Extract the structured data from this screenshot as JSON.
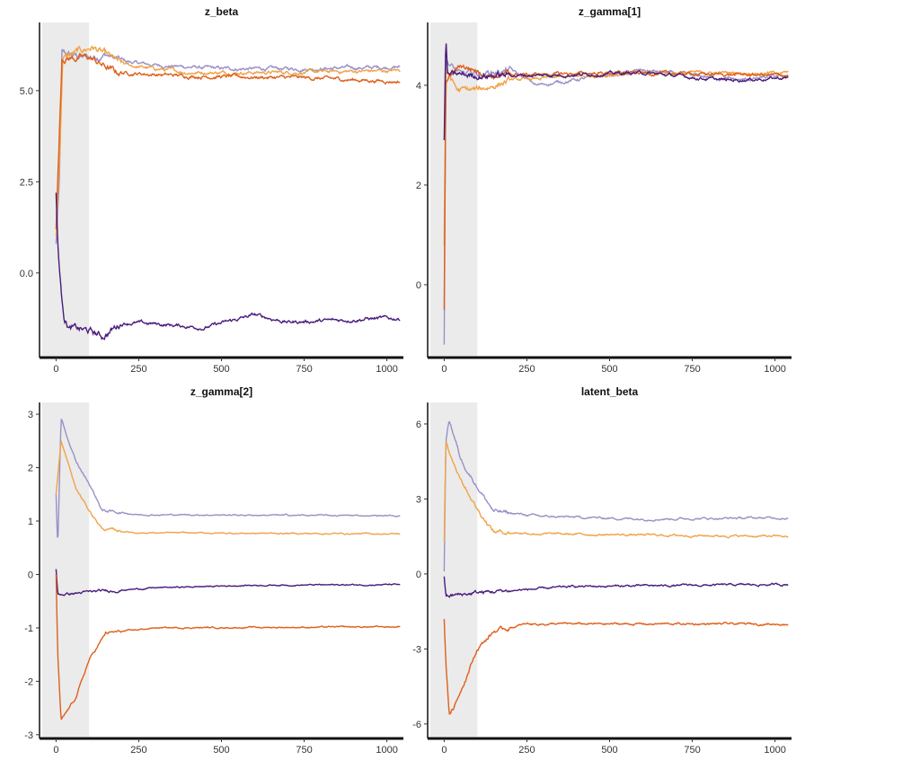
{
  "colors": {
    "dark_purple": "#4a1d7c",
    "light_purple": "#9a90c6",
    "light_orange": "#f0a349",
    "dark_orange": "#df5f1b",
    "warmup": "#ebebeb"
  },
  "chart_data": [
    {
      "type": "line",
      "title": "z_beta",
      "xlim": [
        -50,
        1050
      ],
      "ylim": [
        -2.32,
        6.87
      ],
      "xticks": [
        "0",
        "250",
        "500",
        "750",
        "1000"
      ],
      "yticks": [
        "0.0",
        "2.5",
        "5.0"
      ],
      "warmup": [
        0,
        100
      ],
      "grid": false,
      "noise": 0.06,
      "series": [
        {
          "color": "light_purple",
          "points": [
            [
              0,
              0.8
            ],
            [
              10,
              2.5
            ],
            [
              18,
              6.0
            ],
            [
              100,
              5.9
            ],
            [
              150,
              6.0
            ],
            [
              200,
              5.8
            ],
            [
              300,
              5.7
            ],
            [
              500,
              5.6
            ],
            [
              750,
              5.6
            ],
            [
              1040,
              5.65
            ]
          ]
        },
        {
          "color": "light_orange",
          "points": [
            [
              0,
              1.0
            ],
            [
              12,
              3.5
            ],
            [
              20,
              5.9
            ],
            [
              110,
              6.2
            ],
            [
              200,
              5.7
            ],
            [
              400,
              5.5
            ],
            [
              700,
              5.5
            ],
            [
              1040,
              5.55
            ]
          ]
        },
        {
          "color": "dark_orange",
          "points": [
            [
              0,
              1.2
            ],
            [
              18,
              5.9
            ],
            [
              100,
              5.9
            ],
            [
              180,
              5.5
            ],
            [
              400,
              5.4
            ],
            [
              750,
              5.35
            ],
            [
              1040,
              5.25
            ]
          ]
        },
        {
          "color": "dark_purple",
          "points": [
            [
              0,
              2.2
            ],
            [
              5,
              0.8
            ],
            [
              15,
              -0.5
            ],
            [
              25,
              -1.2
            ],
            [
              40,
              -1.5
            ],
            [
              100,
              -1.6
            ],
            [
              140,
              -1.75
            ],
            [
              200,
              -1.35
            ],
            [
              300,
              -1.4
            ],
            [
              450,
              -1.5
            ],
            [
              600,
              -1.15
            ],
            [
              700,
              -1.35
            ],
            [
              850,
              -1.3
            ],
            [
              950,
              -1.25
            ],
            [
              1040,
              -1.25
            ]
          ]
        }
      ]
    },
    {
      "type": "line",
      "title": "z_gamma[1]",
      "xlim": [
        -50,
        1050
      ],
      "ylim": [
        -1.46,
        5.26
      ],
      "xticks": [
        "0",
        "250",
        "500",
        "750",
        "1000"
      ],
      "yticks": [
        "0",
        "2",
        "4"
      ],
      "warmup": [
        0,
        100
      ],
      "grid": false,
      "noise": 0.04,
      "series": [
        {
          "color": "light_purple",
          "points": [
            [
              0,
              -1.2
            ],
            [
              5,
              4.5
            ],
            [
              50,
              4.2
            ],
            [
              200,
              4.3
            ],
            [
              280,
              4.0
            ],
            [
              600,
              4.3
            ],
            [
              900,
              4.1
            ],
            [
              1040,
              4.2
            ]
          ]
        },
        {
          "color": "light_orange",
          "points": [
            [
              0,
              0.8
            ],
            [
              5,
              4.3
            ],
            [
              40,
              3.9
            ],
            [
              100,
              3.9
            ],
            [
              200,
              4.1
            ],
            [
              600,
              4.25
            ],
            [
              1040,
              4.25
            ]
          ]
        },
        {
          "color": "dark_orange",
          "points": [
            [
              0,
              -0.5
            ],
            [
              5,
              4.1
            ],
            [
              50,
              4.4
            ],
            [
              150,
              4.2
            ],
            [
              500,
              4.25
            ],
            [
              1040,
              4.2
            ]
          ]
        },
        {
          "color": "dark_purple",
          "points": [
            [
              0,
              2.9
            ],
            [
              5,
              5.0
            ],
            [
              10,
              4.2
            ],
            [
              100,
              4.2
            ],
            [
              300,
              4.2
            ],
            [
              600,
              4.25
            ],
            [
              850,
              4.1
            ],
            [
              1040,
              4.15
            ]
          ]
        }
      ]
    },
    {
      "type": "line",
      "title": "z_gamma[2]",
      "xlim": [
        -50,
        1050
      ],
      "ylim": [
        -3.07,
        3.22
      ],
      "xticks": [
        "0",
        "250",
        "500",
        "750",
        "1000"
      ],
      "yticks": [
        "-3",
        "-2",
        "-1",
        "0",
        "1",
        "2",
        "3"
      ],
      "warmup": [
        0,
        100
      ],
      "grid": false,
      "noise": 0.015,
      "series": [
        {
          "color": "light_purple",
          "points": [
            [
              0,
              1.5
            ],
            [
              5,
              0.5
            ],
            [
              15,
              2.9
            ],
            [
              60,
              2.1
            ],
            [
              100,
              1.7
            ],
            [
              140,
              1.2
            ],
            [
              250,
              1.12
            ],
            [
              1040,
              1.1
            ]
          ]
        },
        {
          "color": "light_orange",
          "points": [
            [
              0,
              1.5
            ],
            [
              15,
              2.5
            ],
            [
              60,
              1.6
            ],
            [
              100,
              1.2
            ],
            [
              140,
              0.85
            ],
            [
              250,
              0.78
            ],
            [
              1040,
              0.76
            ]
          ]
        },
        {
          "color": "dark_purple",
          "points": [
            [
              0,
              0.1
            ],
            [
              5,
              -0.38
            ],
            [
              100,
              -0.33
            ],
            [
              300,
              -0.25
            ],
            [
              600,
              -0.2
            ],
            [
              1040,
              -0.19
            ]
          ]
        },
        {
          "color": "dark_orange",
          "points": [
            [
              0,
              0.0
            ],
            [
              5,
              -1.5
            ],
            [
              15,
              -2.75
            ],
            [
              60,
              -2.3
            ],
            [
              100,
              -1.6
            ],
            [
              150,
              -1.1
            ],
            [
              300,
              -1.0
            ],
            [
              1040,
              -0.98
            ]
          ]
        }
      ]
    },
    {
      "type": "line",
      "title": "latent_beta",
      "xlim": [
        -50,
        1050
      ],
      "ylim": [
        -6.58,
        6.86
      ],
      "xticks": [
        "0",
        "250",
        "500",
        "750",
        "1000"
      ],
      "yticks": [
        "-6",
        "-3",
        "0",
        "3",
        "6"
      ],
      "warmup": [
        0,
        100
      ],
      "grid": false,
      "noise": 0.05,
      "series": [
        {
          "color": "light_purple",
          "points": [
            [
              0,
              0.1
            ],
            [
              5,
              5.3
            ],
            [
              15,
              6.2
            ],
            [
              50,
              4.6
            ],
            [
              100,
              3.5
            ],
            [
              150,
              2.5
            ],
            [
              300,
              2.3
            ],
            [
              600,
              2.2
            ],
            [
              1040,
              2.25
            ]
          ]
        },
        {
          "color": "light_orange",
          "points": [
            [
              0,
              1.3
            ],
            [
              5,
              5.3
            ],
            [
              15,
              4.8
            ],
            [
              60,
              3.6
            ],
            [
              100,
              2.6
            ],
            [
              150,
              1.7
            ],
            [
              300,
              1.6
            ],
            [
              1040,
              1.5
            ]
          ]
        },
        {
          "color": "dark_purple",
          "points": [
            [
              0,
              -0.1
            ],
            [
              5,
              -0.9
            ],
            [
              100,
              -0.75
            ],
            [
              400,
              -0.5
            ],
            [
              1040,
              -0.42
            ]
          ]
        },
        {
          "color": "dark_orange",
          "points": [
            [
              0,
              -1.8
            ],
            [
              5,
              -3.5
            ],
            [
              15,
              -5.6
            ],
            [
              30,
              -5.3
            ],
            [
              100,
              -3.0
            ],
            [
              150,
              -2.3
            ],
            [
              250,
              -2.0
            ],
            [
              1040,
              -2.0
            ]
          ]
        }
      ]
    }
  ]
}
